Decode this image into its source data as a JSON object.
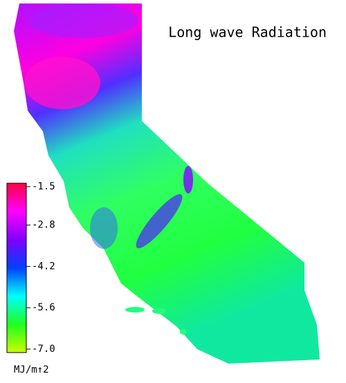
{
  "title": "Long wave Radiation",
  "colorbar": {
    "label": "MJ/m↑2",
    "lim": [
      -7.0,
      -1.5
    ],
    "ticks": [
      -1.5,
      -2.8,
      -4.2,
      -5.6,
      {
        "value": -7.0,
        "label": "-7.0"
      }
    ],
    "colors": [
      "#c8ff00",
      "#20ff20",
      "#00ffff",
      "#0040ff",
      "#8000ff",
      "#ff00ff",
      "#ff0040"
    ]
  }
}
